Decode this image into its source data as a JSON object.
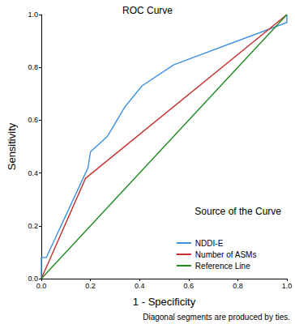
{
  "chart_data": {
    "type": "line",
    "title": "ROC Curve",
    "x_label": "1 - Specificity",
    "y_label": "Sensitivity",
    "legend_title": "Source of the Curve",
    "annotations": [
      "Diagonal segments are produced by ties."
    ],
    "series": [
      {
        "name": "NDDI-E",
        "color": "#3d8fe0",
        "x": [
          0,
          0,
          0.02,
          0.19,
          0.2,
          0.27,
          0.34,
          0.41,
          0.54,
          1,
          1
        ],
        "values": [
          0,
          0.08,
          0.08,
          0.42,
          0.48,
          0.54,
          0.65,
          0.73,
          0.81,
          0.97,
          1
        ]
      },
      {
        "name": "Number of ASMs",
        "color": "#c8302e",
        "x": [
          0,
          0.18,
          1
        ],
        "values": [
          0,
          0.38,
          1
        ]
      },
      {
        "name": "Reference Line",
        "color": "#1f8a1f",
        "x": [
          0,
          1
        ],
        "values": [
          0,
          1
        ]
      }
    ],
    "xlim": [
      0,
      1
    ],
    "ylim": [
      0,
      1
    ],
    "xticks": [
      {
        "value": 0,
        "label": "0.0"
      },
      {
        "value": 0.2,
        "label": "0.2"
      },
      {
        "value": 0.4,
        "label": "0.4"
      },
      {
        "value": 0.6,
        "label": "0.6"
      },
      {
        "value": 0.8,
        "label": "0.8"
      },
      {
        "value": 1,
        "label": "1.0"
      }
    ],
    "yticks": [
      {
        "value": 0,
        "label": "0.0"
      },
      {
        "value": 0.2,
        "label": "0.2"
      },
      {
        "value": 0.4,
        "label": "0.4"
      },
      {
        "value": 0.6,
        "label": "0.6"
      },
      {
        "value": 0.8,
        "label": "0.8"
      },
      {
        "value": 1,
        "label": "1.0"
      }
    ],
    "grid": false,
    "legend": "lower right"
  }
}
